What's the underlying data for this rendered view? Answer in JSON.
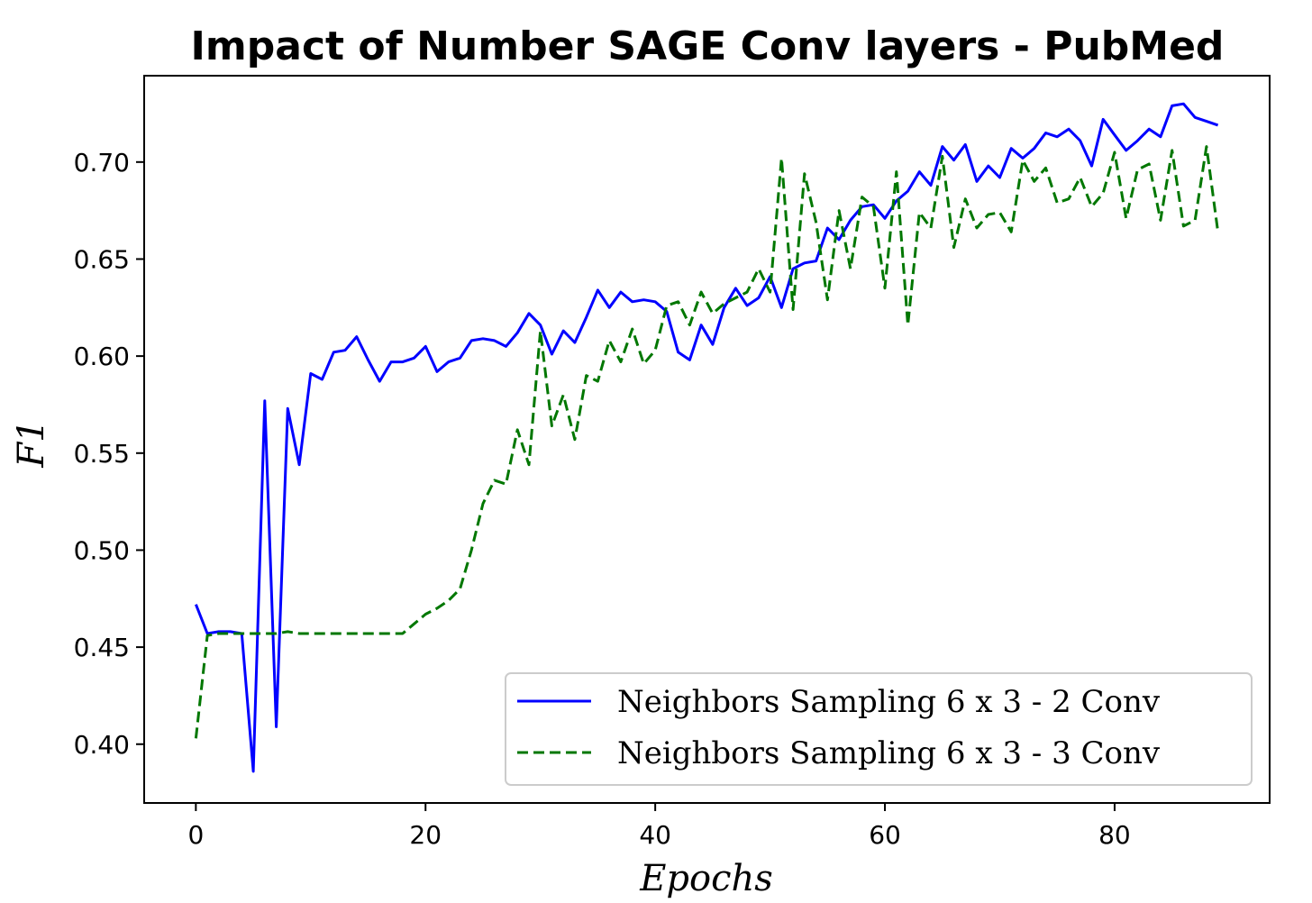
{
  "chart_data": {
    "type": "line",
    "title": "Impact of Number SAGE Conv layers - PubMed",
    "xlabel": "Epochs",
    "ylabel": "F1",
    "xlim": [
      -4.5,
      93.5
    ],
    "ylim": [
      0.3697,
      0.7445
    ],
    "xticks": [
      0,
      20,
      40,
      60,
      80
    ],
    "yticks": [
      0.4,
      0.45,
      0.5,
      0.55,
      0.6,
      0.65,
      0.7
    ],
    "xtick_labels": [
      "0",
      "20",
      "40",
      "60",
      "80"
    ],
    "ytick_labels": [
      "0.40",
      "0.45",
      "0.50",
      "0.55",
      "0.60",
      "0.65",
      "0.70"
    ],
    "grid": false,
    "legend_position": "lower-right",
    "x": [
      0,
      1,
      2,
      3,
      4,
      5,
      6,
      7,
      8,
      9,
      10,
      11,
      12,
      13,
      14,
      15,
      16,
      17,
      18,
      19,
      20,
      21,
      22,
      23,
      24,
      25,
      26,
      27,
      28,
      29,
      30,
      31,
      32,
      33,
      34,
      35,
      36,
      37,
      38,
      39,
      40,
      41,
      42,
      43,
      44,
      45,
      46,
      47,
      48,
      49,
      50,
      51,
      52,
      53,
      54,
      55,
      56,
      57,
      58,
      59,
      60,
      61,
      62,
      63,
      64,
      65,
      66,
      67,
      68,
      69,
      70,
      71,
      72,
      73,
      74,
      75,
      76,
      77,
      78,
      79,
      80,
      81,
      82,
      83,
      84,
      85,
      86,
      87,
      88,
      89
    ],
    "series": [
      {
        "name": "Neighbors Sampling 6 x 3 - 2 Conv",
        "color": "#0000ff",
        "style": "solid",
        "values": [
          0.472,
          0.457,
          0.458,
          0.458,
          0.457,
          0.386,
          0.577,
          0.409,
          0.573,
          0.544,
          0.591,
          0.588,
          0.602,
          0.603,
          0.61,
          0.598,
          0.587,
          0.597,
          0.597,
          0.599,
          0.605,
          0.592,
          0.597,
          0.599,
          0.608,
          0.609,
          0.608,
          0.605,
          0.612,
          0.622,
          0.616,
          0.601,
          0.613,
          0.607,
          0.62,
          0.634,
          0.625,
          0.633,
          0.628,
          0.629,
          0.628,
          0.623,
          0.602,
          0.598,
          0.616,
          0.606,
          0.625,
          0.635,
          0.626,
          0.63,
          0.641,
          0.625,
          0.645,
          0.648,
          0.649,
          0.666,
          0.66,
          0.67,
          0.677,
          0.678,
          0.671,
          0.68,
          0.685,
          0.695,
          0.688,
          0.708,
          0.701,
          0.709,
          0.69,
          0.698,
          0.692,
          0.707,
          0.702,
          0.707,
          0.715,
          0.713,
          0.717,
          0.711,
          0.698,
          0.722,
          0.714,
          0.706,
          0.711,
          0.717,
          0.713,
          0.729,
          0.73,
          0.723,
          0.721,
          0.719
        ]
      },
      {
        "name": "Neighbors Sampling 6 x 3 - 3 Conv",
        "color": "#007700",
        "style": "dashed",
        "values": [
          0.403,
          0.456,
          0.457,
          0.457,
          0.457,
          0.457,
          0.457,
          0.457,
          0.458,
          0.457,
          0.457,
          0.457,
          0.457,
          0.457,
          0.457,
          0.457,
          0.457,
          0.457,
          0.457,
          0.462,
          0.467,
          0.47,
          0.474,
          0.48,
          0.5,
          0.524,
          0.536,
          0.534,
          0.562,
          0.544,
          0.613,
          0.564,
          0.58,
          0.557,
          0.59,
          0.587,
          0.608,
          0.597,
          0.614,
          0.596,
          0.603,
          0.626,
          0.628,
          0.616,
          0.633,
          0.622,
          0.627,
          0.63,
          0.633,
          0.645,
          0.633,
          0.702,
          0.624,
          0.694,
          0.669,
          0.629,
          0.675,
          0.645,
          0.682,
          0.677,
          0.635,
          0.695,
          0.616,
          0.674,
          0.666,
          0.703,
          0.656,
          0.681,
          0.666,
          0.673,
          0.674,
          0.664,
          0.701,
          0.69,
          0.697,
          0.679,
          0.681,
          0.692,
          0.677,
          0.684,
          0.705,
          0.671,
          0.696,
          0.699,
          0.67,
          0.706,
          0.667,
          0.67,
          0.708,
          0.664
        ]
      }
    ]
  }
}
